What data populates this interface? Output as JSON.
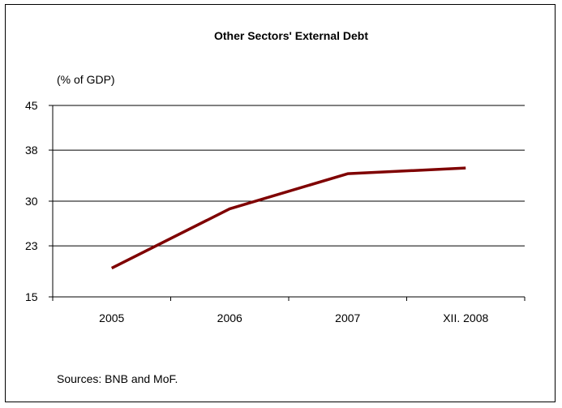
{
  "chart_data": {
    "type": "line",
    "title": "Other Sectors' External Debt",
    "unit_label": "(% of GDP)",
    "categories": [
      "2005",
      "2006",
      "2007",
      "XII. 2008"
    ],
    "series": [
      {
        "values": [
          19.5,
          28.8,
          34.3,
          35.2
        ]
      }
    ],
    "ylim": [
      15,
      45
    ],
    "yticks": [
      15,
      23,
      30,
      38,
      45
    ],
    "grid": true,
    "line_color": "#7f0000",
    "source_note": "Sources: BNB and MoF."
  }
}
